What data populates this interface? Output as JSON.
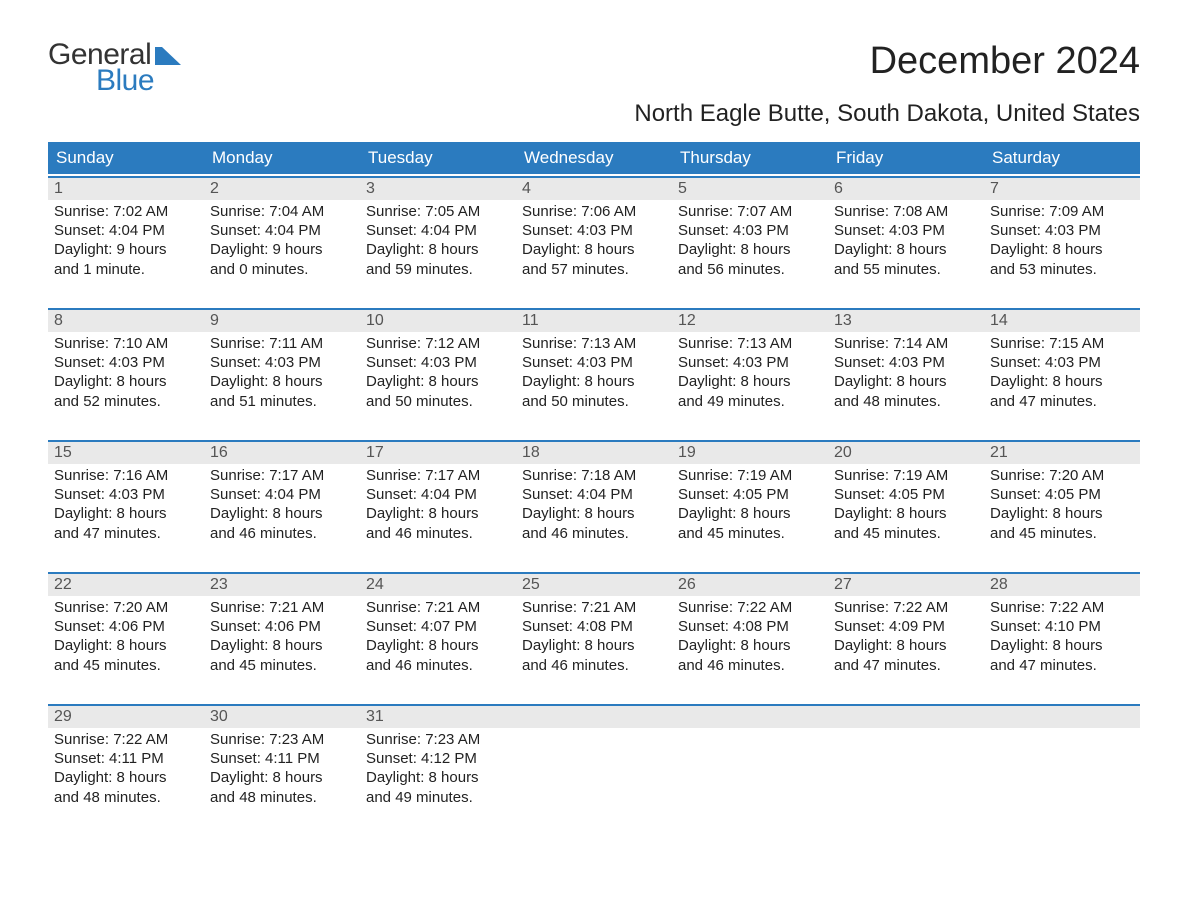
{
  "logo": {
    "general": "General",
    "blue": "Blue",
    "mark_color": "#2b7bbf"
  },
  "title": "December 2024",
  "subtitle": "North Eagle Butte, South Dakota, United States",
  "colors": {
    "header_bg": "#2b7bbf",
    "header_text": "#ffffff",
    "daynum_bg": "#e9e9e9",
    "week_border": "#2b7bbf",
    "body_bg": "#ffffff",
    "text": "#222222",
    "logo_blue": "#2b7bbf"
  },
  "fontsizes": {
    "title": 38,
    "subtitle": 24,
    "header": 17,
    "daynum": 16,
    "body": 15,
    "logo": 30
  },
  "day_labels": [
    "Sunday",
    "Monday",
    "Tuesday",
    "Wednesday",
    "Thursday",
    "Friday",
    "Saturday"
  ],
  "weeks": [
    [
      {
        "n": "1",
        "sunrise": "Sunrise: 7:02 AM",
        "sunset": "Sunset: 4:04 PM",
        "d1": "Daylight: 9 hours",
        "d2": "and 1 minute."
      },
      {
        "n": "2",
        "sunrise": "Sunrise: 7:04 AM",
        "sunset": "Sunset: 4:04 PM",
        "d1": "Daylight: 9 hours",
        "d2": "and 0 minutes."
      },
      {
        "n": "3",
        "sunrise": "Sunrise: 7:05 AM",
        "sunset": "Sunset: 4:04 PM",
        "d1": "Daylight: 8 hours",
        "d2": "and 59 minutes."
      },
      {
        "n": "4",
        "sunrise": "Sunrise: 7:06 AM",
        "sunset": "Sunset: 4:03 PM",
        "d1": "Daylight: 8 hours",
        "d2": "and 57 minutes."
      },
      {
        "n": "5",
        "sunrise": "Sunrise: 7:07 AM",
        "sunset": "Sunset: 4:03 PM",
        "d1": "Daylight: 8 hours",
        "d2": "and 56 minutes."
      },
      {
        "n": "6",
        "sunrise": "Sunrise: 7:08 AM",
        "sunset": "Sunset: 4:03 PM",
        "d1": "Daylight: 8 hours",
        "d2": "and 55 minutes."
      },
      {
        "n": "7",
        "sunrise": "Sunrise: 7:09 AM",
        "sunset": "Sunset: 4:03 PM",
        "d1": "Daylight: 8 hours",
        "d2": "and 53 minutes."
      }
    ],
    [
      {
        "n": "8",
        "sunrise": "Sunrise: 7:10 AM",
        "sunset": "Sunset: 4:03 PM",
        "d1": "Daylight: 8 hours",
        "d2": "and 52 minutes."
      },
      {
        "n": "9",
        "sunrise": "Sunrise: 7:11 AM",
        "sunset": "Sunset: 4:03 PM",
        "d1": "Daylight: 8 hours",
        "d2": "and 51 minutes."
      },
      {
        "n": "10",
        "sunrise": "Sunrise: 7:12 AM",
        "sunset": "Sunset: 4:03 PM",
        "d1": "Daylight: 8 hours",
        "d2": "and 50 minutes."
      },
      {
        "n": "11",
        "sunrise": "Sunrise: 7:13 AM",
        "sunset": "Sunset: 4:03 PM",
        "d1": "Daylight: 8 hours",
        "d2": "and 50 minutes."
      },
      {
        "n": "12",
        "sunrise": "Sunrise: 7:13 AM",
        "sunset": "Sunset: 4:03 PM",
        "d1": "Daylight: 8 hours",
        "d2": "and 49 minutes."
      },
      {
        "n": "13",
        "sunrise": "Sunrise: 7:14 AM",
        "sunset": "Sunset: 4:03 PM",
        "d1": "Daylight: 8 hours",
        "d2": "and 48 minutes."
      },
      {
        "n": "14",
        "sunrise": "Sunrise: 7:15 AM",
        "sunset": "Sunset: 4:03 PM",
        "d1": "Daylight: 8 hours",
        "d2": "and 47 minutes."
      }
    ],
    [
      {
        "n": "15",
        "sunrise": "Sunrise: 7:16 AM",
        "sunset": "Sunset: 4:03 PM",
        "d1": "Daylight: 8 hours",
        "d2": "and 47 minutes."
      },
      {
        "n": "16",
        "sunrise": "Sunrise: 7:17 AM",
        "sunset": "Sunset: 4:04 PM",
        "d1": "Daylight: 8 hours",
        "d2": "and 46 minutes."
      },
      {
        "n": "17",
        "sunrise": "Sunrise: 7:17 AM",
        "sunset": "Sunset: 4:04 PM",
        "d1": "Daylight: 8 hours",
        "d2": "and 46 minutes."
      },
      {
        "n": "18",
        "sunrise": "Sunrise: 7:18 AM",
        "sunset": "Sunset: 4:04 PM",
        "d1": "Daylight: 8 hours",
        "d2": "and 46 minutes."
      },
      {
        "n": "19",
        "sunrise": "Sunrise: 7:19 AM",
        "sunset": "Sunset: 4:05 PM",
        "d1": "Daylight: 8 hours",
        "d2": "and 45 minutes."
      },
      {
        "n": "20",
        "sunrise": "Sunrise: 7:19 AM",
        "sunset": "Sunset: 4:05 PM",
        "d1": "Daylight: 8 hours",
        "d2": "and 45 minutes."
      },
      {
        "n": "21",
        "sunrise": "Sunrise: 7:20 AM",
        "sunset": "Sunset: 4:05 PM",
        "d1": "Daylight: 8 hours",
        "d2": "and 45 minutes."
      }
    ],
    [
      {
        "n": "22",
        "sunrise": "Sunrise: 7:20 AM",
        "sunset": "Sunset: 4:06 PM",
        "d1": "Daylight: 8 hours",
        "d2": "and 45 minutes."
      },
      {
        "n": "23",
        "sunrise": "Sunrise: 7:21 AM",
        "sunset": "Sunset: 4:06 PM",
        "d1": "Daylight: 8 hours",
        "d2": "and 45 minutes."
      },
      {
        "n": "24",
        "sunrise": "Sunrise: 7:21 AM",
        "sunset": "Sunset: 4:07 PM",
        "d1": "Daylight: 8 hours",
        "d2": "and 46 minutes."
      },
      {
        "n": "25",
        "sunrise": "Sunrise: 7:21 AM",
        "sunset": "Sunset: 4:08 PM",
        "d1": "Daylight: 8 hours",
        "d2": "and 46 minutes."
      },
      {
        "n": "26",
        "sunrise": "Sunrise: 7:22 AM",
        "sunset": "Sunset: 4:08 PM",
        "d1": "Daylight: 8 hours",
        "d2": "and 46 minutes."
      },
      {
        "n": "27",
        "sunrise": "Sunrise: 7:22 AM",
        "sunset": "Sunset: 4:09 PM",
        "d1": "Daylight: 8 hours",
        "d2": "and 47 minutes."
      },
      {
        "n": "28",
        "sunrise": "Sunrise: 7:22 AM",
        "sunset": "Sunset: 4:10 PM",
        "d1": "Daylight: 8 hours",
        "d2": "and 47 minutes."
      }
    ],
    [
      {
        "n": "29",
        "sunrise": "Sunrise: 7:22 AM",
        "sunset": "Sunset: 4:11 PM",
        "d1": "Daylight: 8 hours",
        "d2": "and 48 minutes."
      },
      {
        "n": "30",
        "sunrise": "Sunrise: 7:23 AM",
        "sunset": "Sunset: 4:11 PM",
        "d1": "Daylight: 8 hours",
        "d2": "and 48 minutes."
      },
      {
        "n": "31",
        "sunrise": "Sunrise: 7:23 AM",
        "sunset": "Sunset: 4:12 PM",
        "d1": "Daylight: 8 hours",
        "d2": "and 49 minutes."
      },
      null,
      null,
      null,
      null
    ]
  ]
}
